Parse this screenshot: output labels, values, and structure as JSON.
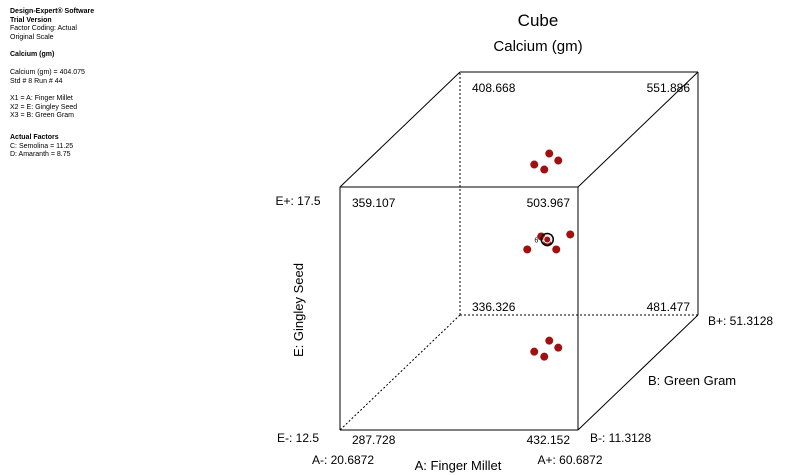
{
  "panel": {
    "software": "Design-Expert® Software",
    "version": "Trial Version",
    "factor_coding": "Factor Coding: Actual",
    "scale": "Original Scale",
    "response_heading": "Calcium (gm)",
    "response_value": "Calcium (gm) = 404.075",
    "std_run": "Std # 8 Run # 44",
    "x1": "X1 = A: Finger Millet",
    "x2": "X2 = E: Gingley Seed",
    "x3": "X3 = B: Green Gram",
    "actual_heading": "Actual Factors",
    "actual_c": "C: Semolina = 11.25",
    "actual_d": "D: Amaranth = 8.75"
  },
  "chart_data": {
    "type": "cube",
    "title": "Cube",
    "subtitle": "Calcium (gm)",
    "axes": {
      "a": {
        "label": "A: Finger Millet",
        "low": "A-: 20.6872",
        "high": "A+: 60.6872"
      },
      "e": {
        "label": "E: Gingley Seed",
        "low": "E-: 12.5",
        "high": "E+: 17.5"
      },
      "b": {
        "label": "B: Green Gram",
        "low": "B-: 11.3128",
        "high": "B+: 51.3128"
      }
    },
    "corners": [
      {
        "a": "low",
        "e": "low",
        "b": "low",
        "value": "287.728"
      },
      {
        "a": "high",
        "e": "low",
        "b": "low",
        "value": "432.152"
      },
      {
        "a": "low",
        "e": "high",
        "b": "low",
        "value": "359.107"
      },
      {
        "a": "high",
        "e": "high",
        "b": "low",
        "value": "503.967"
      },
      {
        "a": "low",
        "e": "low",
        "b": "high",
        "value": "336.326"
      },
      {
        "a": "high",
        "e": "low",
        "b": "high",
        "value": "481.477"
      },
      {
        "a": "low",
        "e": "high",
        "b": "high",
        "value": "408.668"
      },
      {
        "a": "high",
        "e": "high",
        "b": "high",
        "value": "551.886"
      }
    ],
    "point_clusters": [
      {
        "face": "front",
        "center": "middle",
        "points": 6,
        "replicate_label": "6",
        "current_point": true
      },
      {
        "face": "back",
        "center": "top",
        "points": 4
      },
      {
        "face": "back",
        "center": "bottom",
        "points": 4
      }
    ],
    "point_color": "#a01010",
    "line_color": "#000000"
  }
}
